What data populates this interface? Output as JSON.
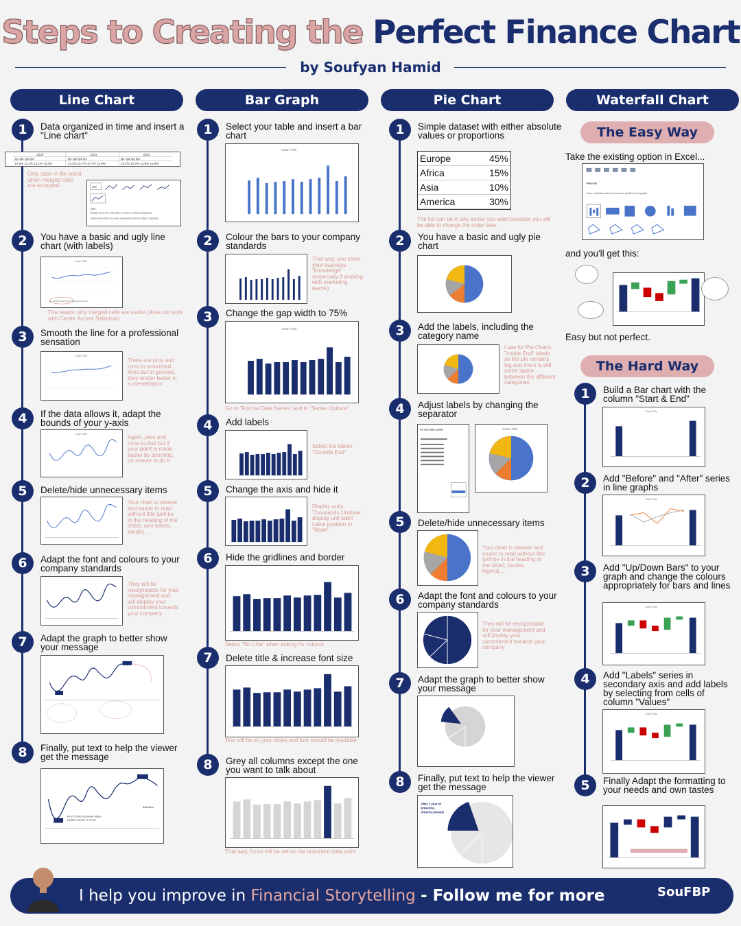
{
  "header": {
    "title_part1": "Steps to Creating the",
    "title_part2": "Perfect Finance Chart",
    "byline": "by Soufyan Hamid"
  },
  "columns": {
    "line": {
      "title": "Line Chart",
      "steps": [
        {
          "n": "1",
          "text": "Data organized in time and insert a \"Line chart\"",
          "note": "Only case in the world when merged cells are accepted."
        },
        {
          "n": "2",
          "text": "You have a basic and ugly line chart (with labels)",
          "note": "The reason why merged cells are useful (does not work with Center Across Selection)"
        },
        {
          "n": "3",
          "text": "Smooth the line for a professional sensation",
          "note": "There are pros and cons to smoothed lines but in general, they render better in a presentation"
        },
        {
          "n": "4",
          "text": "If the data allows it, adapt the bounds of your y-axis",
          "note": "Again, pros and cons to that but if your point is made easier by zooming, no shame to do it"
        },
        {
          "n": "5",
          "text": "Delete/hide unnecessary items",
          "note": "Your chart is cleaner and easier to read without title (will be in the heading of the slide), axis labels, border,..."
        },
        {
          "n": "6",
          "text": "Adapt the font and colours to your company standards",
          "note": "They will be recognisable for your management and will display your commitment towards your company"
        },
        {
          "n": "7",
          "text": "Adapt the graph to better show your message",
          "note": ""
        },
        {
          "n": "8",
          "text": "Finally, put text to help the viewer get the message",
          "note": ""
        }
      ]
    },
    "bar": {
      "title": "Bar Graph",
      "steps": [
        {
          "n": "1",
          "text": "Select your table and insert a bar chart",
          "note": ""
        },
        {
          "n": "2",
          "text": "Colour the bars to your company standards",
          "note": "That way, you show your business \"knowledge\" (especially if working with marketing teams)"
        },
        {
          "n": "3",
          "text": "Change the gap width to 75%",
          "note": "Go to \"Format Data Series\" and in \"Series Options\""
        },
        {
          "n": "4",
          "text": "Add labels",
          "note": "Select the labels \"Outside End\""
        },
        {
          "n": "5",
          "text": "Change the axis and hide it",
          "note": "Display units: Thousands Unshow display unit label Label position to \"None\""
        },
        {
          "n": "6",
          "text": "Hide the gridlines and border",
          "note": "Select \"No Line\" when asking for colours"
        },
        {
          "n": "7",
          "text": "Delete title & increase font size",
          "note": "Text will be on your slides and font should be readable"
        },
        {
          "n": "8",
          "text": "Grey all columns except the one you want to talk about",
          "note": "That way, focus will be set on the important data point"
        }
      ]
    },
    "pie": {
      "title": "Pie Chart",
      "steps": [
        {
          "n": "1",
          "text": "Simple dataset with either absolute values or proportions",
          "note": "The list can be in any sense you want because you will be able to change the order later"
        },
        {
          "n": "2",
          "text": "You have a basic and ugly pie chart",
          "note": ""
        },
        {
          "n": "3",
          "text": "Add the labels, including the category name",
          "note": "I use for Pie Charts \"Inside End\" labels so the pie remains big and there is still some space between the different categories"
        },
        {
          "n": "4",
          "text": "Adjust labels by changing the separator",
          "note": ""
        },
        {
          "n": "5",
          "text": "Delete/hide unnecessary items",
          "note": "Your chart is cleaner and easier to read without title (will be in the heading of the slide), border, legend,..."
        },
        {
          "n": "6",
          "text": "Adapt the font and colours to your company standards",
          "note": "They will be recognisable for your management and will display your commitment towards your company"
        },
        {
          "n": "7",
          "text": "Adapt the graph to better show your message",
          "note": ""
        },
        {
          "n": "8",
          "text": "Finally, put text to help the viewer get the message",
          "note": ""
        }
      ],
      "table": [
        {
          "label": "Europe",
          "value": "45%"
        },
        {
          "label": "Africa",
          "value": "15%"
        },
        {
          "label": "Asia",
          "value": "10%"
        },
        {
          "label": "America",
          "value": "30%"
        }
      ]
    },
    "waterfall": {
      "title": "Waterfall Chart",
      "easy_title": "The Easy Way",
      "easy_intro": "Take the existing option in Excel...",
      "easy_get": "and you'll get this:",
      "easy_verdict": "Easy but not perfect.",
      "hard_title": "The Hard Way",
      "steps": [
        {
          "n": "1",
          "text": "Build a Bar chart with the column \"Start & End\""
        },
        {
          "n": "2",
          "text": "Add \"Before\" and \"After\" series in line graphs"
        },
        {
          "n": "3",
          "text": "Add \"Up/Down Bars\" to your graph and change the colours appropriately for bars and lines"
        },
        {
          "n": "4",
          "text": "Add \"Labels\" series in secondary axis and add labels by selecting from cells of column \"Values\""
        },
        {
          "n": "5",
          "text": "Finally Adapt the formatting to your needs and own tastes"
        }
      ]
    }
  },
  "footer": {
    "text_pre": "I help you improve in",
    "text_accent": "Financial Storytelling",
    "text_post": "- Follow me for more",
    "logo": "SouFBP"
  },
  "colors": {
    "navy": "#1a2e6e",
    "pink": "#dfaeb0",
    "note": "#d89b92"
  }
}
